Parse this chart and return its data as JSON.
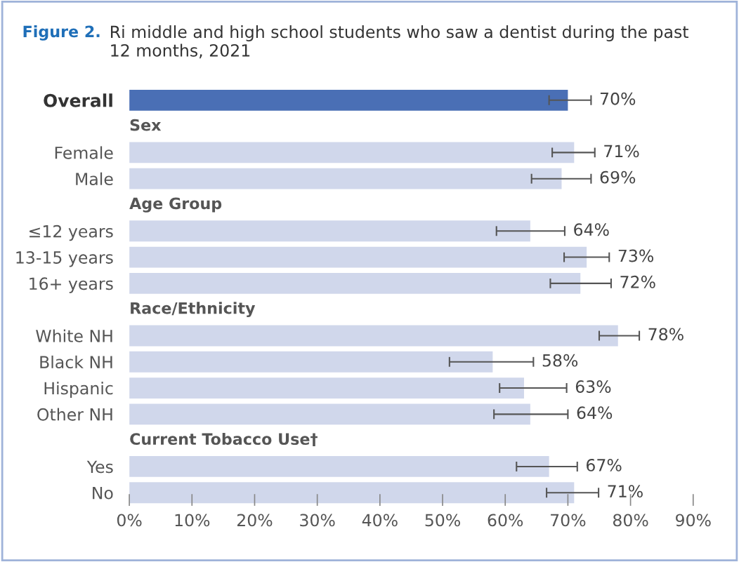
{
  "chart_data": {
    "type": "bar",
    "orientation": "horizontal",
    "title": "Figure 2.",
    "subtitle": "Ri middle and high school students who saw a dentist during the past\n12 months, 2021",
    "categories": [
      "Overall",
      "Sex",
      "Female",
      "Male",
      "Age Group",
      "≤12 years",
      "13-15 years",
      "16+ years",
      "Race/Ethnicity",
      "White NH",
      "Black NH",
      "Hispanic",
      "Other NH",
      "Current Tobacco Use†",
      "Yes",
      "No"
    ],
    "values": [
      70,
      null,
      71,
      69,
      null,
      64,
      73,
      72,
      null,
      78,
      58,
      63,
      64,
      null,
      67,
      71
    ],
    "colors": [
      "#4a6fb5",
      null,
      "#d0d7eb",
      "#d0d7eb",
      null,
      "#d0d7eb",
      "#d0d7eb",
      "#d0d7eb",
      null,
      "#d0d7eb",
      "#d0d7eb",
      "#d0d7eb",
      "#d0d7eb",
      null,
      "#d0d7eb",
      "#d0d7eb"
    ],
    "errors": [
      [
        67,
        73.7
      ],
      null,
      [
        67.5,
        74.3
      ],
      [
        64.2,
        73.7
      ],
      null,
      [
        58.6,
        69.5
      ],
      [
        69.4,
        76.6
      ],
      [
        67.2,
        76.9
      ],
      null,
      [
        75.0,
        81.4
      ],
      [
        51.1,
        64.5
      ],
      [
        59.1,
        69.8
      ],
      [
        58.2,
        70.0
      ],
      null,
      [
        61.8,
        71.5
      ],
      [
        66.6,
        74.9
      ]
    ],
    "value_labels": [
      "70%",
      null,
      "71%",
      "69%",
      null,
      "64%",
      "73%",
      "72%",
      null,
      "78%",
      "58%",
      "63%",
      "64%",
      null,
      "67%",
      "71%"
    ],
    "xlim": [
      0,
      90
    ],
    "xticks": [
      {
        "value": 0,
        "label": "0%"
      },
      {
        "value": 10,
        "label": "10%"
      },
      {
        "value": 20,
        "label": "20%"
      },
      {
        "value": 30,
        "label": "30%"
      },
      {
        "value": 40,
        "label": "40%"
      },
      {
        "value": 50,
        "label": "50%"
      },
      {
        "value": 60,
        "label": "60%"
      },
      {
        "value": 70,
        "label": "70%"
      },
      {
        "value": 80,
        "label": "80%"
      },
      {
        "value": 90,
        "label": "90%"
      }
    ],
    "grid": false,
    "legend": false
  }
}
